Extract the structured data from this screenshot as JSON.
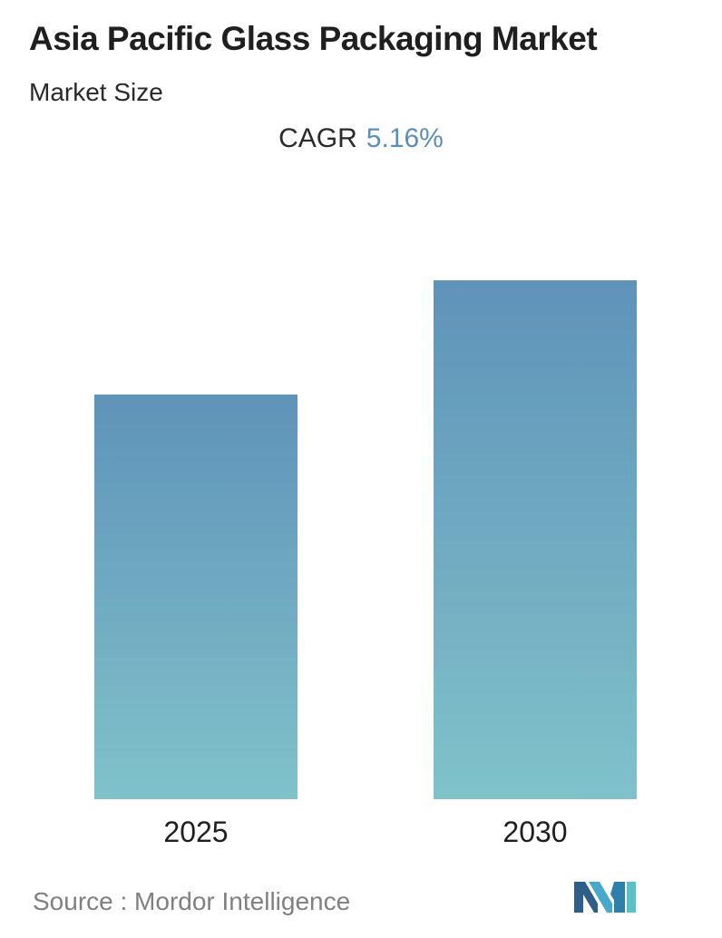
{
  "header": {
    "title": "Asia Pacific Glass Packaging Market",
    "subtitle": "Market Size",
    "cagr_label": "CAGR",
    "cagr_value": "5.16%"
  },
  "footer": {
    "source_text": "Source :  Mordor Intelligence",
    "logo_icon": "mordor-intelligence-logo-icon"
  },
  "colors": {
    "bar_top": "#5f93b9",
    "bar_bottom": "#80c2ca",
    "cagr_accent": "#5b8fb8",
    "axis_line": "#bfbfbf"
  },
  "chart_data": {
    "type": "bar",
    "title": "Asia Pacific Glass Packaging Market",
    "subtitle": "Market Size",
    "categories": [
      "2025",
      "2030"
    ],
    "values": [
      78,
      100
    ],
    "ylim": [
      0,
      100
    ],
    "xlabel": "",
    "ylabel": "",
    "grid": false,
    "legend": "none"
  }
}
